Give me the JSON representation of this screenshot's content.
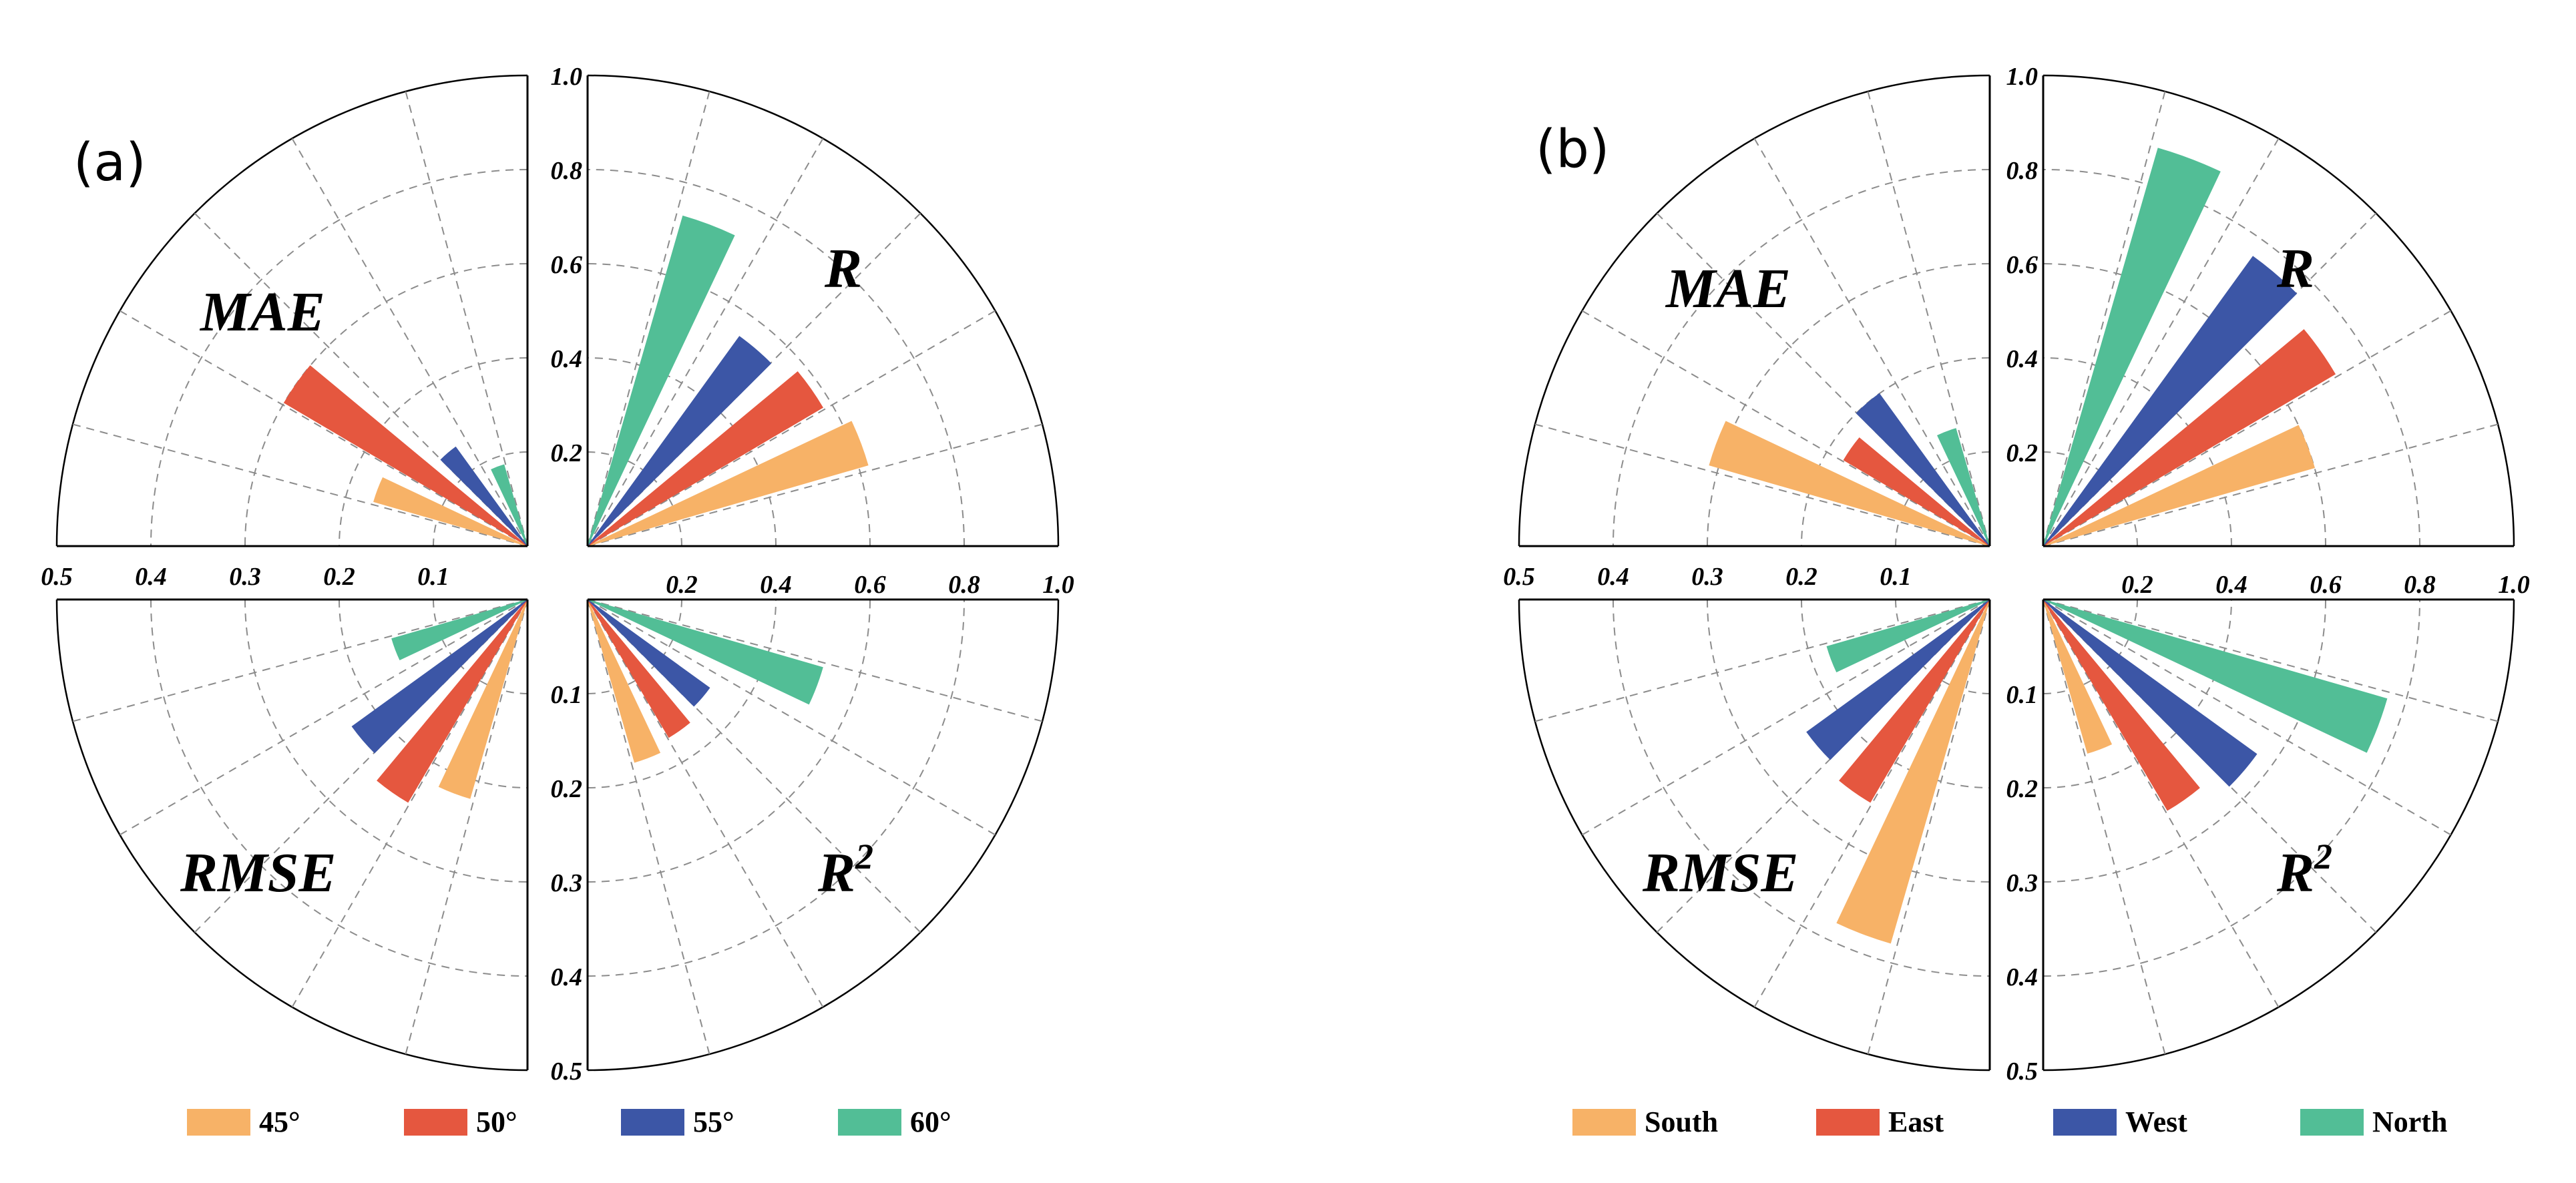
{
  "chart_data": [
    {
      "type": "polar-bar",
      "panel_label": "(a)",
      "series_names": [
        "45°",
        "50°",
        "55°",
        "60°"
      ],
      "colors": [
        "#F7B267",
        "#E5573F",
        "#3C56A6",
        "#52BE96"
      ],
      "legend_position": "bottom",
      "quadrants": {
        "R": {
          "label": "R",
          "label_sup": "",
          "range": [
            0,
            1.0
          ],
          "ticks": [
            "0.2",
            "0.4",
            "0.6",
            "0.8",
            "1.0"
          ],
          "values": [
            0.62,
            0.58,
            0.55,
            0.73
          ]
        },
        "MAE": {
          "label": "MAE",
          "label_sup": "",
          "range": [
            0,
            0.5
          ],
          "ticks": [
            "0.1",
            "0.2",
            "0.3",
            "0.4",
            "0.5"
          ],
          "values": [
            0.17,
            0.3,
            0.13,
            0.09
          ]
        },
        "RMSE": {
          "label": "RMSE",
          "label_sup": "",
          "range": [
            0,
            0.5
          ],
          "ticks": [
            "0.1",
            "0.2",
            "0.3",
            "0.4",
            "0.5"
          ],
          "values": [
            0.22,
            0.25,
            0.23,
            0.15
          ]
        },
        "R2": {
          "label": "R",
          "label_sup": "2",
          "range": [
            0,
            0.5
          ],
          "ticks": [
            "0.1",
            "0.2",
            "0.3",
            "0.4",
            "0.5"
          ],
          "values": [
            0.18,
            0.17,
            0.16,
            0.26
          ]
        }
      }
    },
    {
      "type": "polar-bar",
      "panel_label": "(b)",
      "series_names": [
        "South",
        "East",
        "West",
        "North"
      ],
      "colors": [
        "#F7B267",
        "#E5573F",
        "#3C56A6",
        "#52BE96"
      ],
      "legend_position": "bottom",
      "quadrants": {
        "R": {
          "label": "R",
          "label_sup": "",
          "range": [
            0,
            1.0
          ],
          "ticks": [
            "0.2",
            "0.4",
            "0.6",
            "0.8",
            "1.0"
          ],
          "values": [
            0.6,
            0.72,
            0.76,
            0.88
          ]
        },
        "MAE": {
          "label": "MAE",
          "label_sup": "",
          "range": [
            0,
            0.5
          ],
          "ticks": [
            "0.1",
            "0.2",
            "0.3",
            "0.4",
            "0.5"
          ],
          "values": [
            0.31,
            0.18,
            0.2,
            0.13
          ]
        },
        "RMSE": {
          "label": "RMSE",
          "label_sup": "",
          "range": [
            0,
            0.5
          ],
          "ticks": [
            "0.1",
            "0.2",
            "0.3",
            "0.4",
            "0.5"
          ],
          "values": [
            0.38,
            0.25,
            0.24,
            0.18
          ]
        },
        "R2": {
          "label": "R",
          "label_sup": "2",
          "range": [
            0,
            0.5
          ],
          "ticks": [
            "0.1",
            "0.2",
            "0.3",
            "0.4",
            "0.5"
          ],
          "values": [
            0.17,
            0.26,
            0.28,
            0.38
          ]
        }
      }
    }
  ]
}
